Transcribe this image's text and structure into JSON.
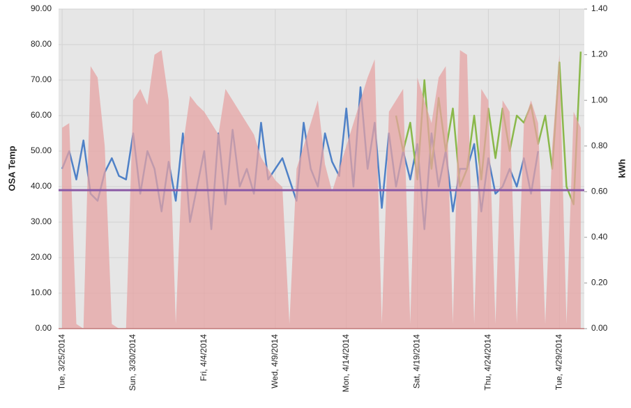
{
  "chart_data": {
    "type": "line",
    "y_label": "OSA Temp",
    "y2_label": "kWh",
    "categories": [
      "Tue, 3/25/2014",
      null,
      null,
      null,
      null,
      null,
      null,
      null,
      null,
      null,
      "Sun, 3/30/2014",
      null,
      null,
      null,
      null,
      null,
      null,
      null,
      null,
      null,
      "Fri, 4/4/2014",
      null,
      null,
      null,
      null,
      null,
      null,
      null,
      null,
      null,
      "Wed, 4/9/2014",
      null,
      null,
      null,
      null,
      null,
      null,
      null,
      null,
      null,
      "Mon, 4/14/2014",
      null,
      null,
      null,
      null,
      null,
      null,
      null,
      null,
      null,
      "Sat, 4/19/2014",
      null,
      null,
      null,
      null,
      null,
      null,
      null,
      null,
      null,
      "Thu, 4/24/2014",
      null,
      null,
      null,
      null,
      null,
      null,
      null,
      null,
      null,
      "Tue, 4/29/2014",
      null,
      null,
      null
    ],
    "series": [
      {
        "type": "line",
        "color": "#4f81c7",
        "values": [
          45,
          50,
          42,
          53,
          38,
          36,
          44,
          48,
          43,
          42,
          55,
          38,
          50,
          45,
          33,
          47,
          36,
          55,
          30,
          40,
          50,
          28,
          55,
          35,
          56,
          40,
          45,
          38,
          58,
          42,
          45,
          48,
          42,
          36,
          58,
          45,
          40,
          55,
          47,
          43,
          62,
          40,
          68,
          45,
          58,
          34,
          55,
          40,
          50,
          42,
          52,
          28,
          55,
          40,
          50,
          33,
          45,
          45,
          52,
          33,
          48,
          38,
          40,
          45,
          40,
          48,
          38,
          50,
          null,
          null,
          null,
          null,
          null,
          null
        ]
      },
      {
        "type": "line",
        "color": "#8ab84a",
        "values": [
          null,
          null,
          null,
          null,
          null,
          null,
          null,
          null,
          null,
          null,
          null,
          null,
          null,
          null,
          null,
          null,
          null,
          null,
          null,
          null,
          null,
          null,
          null,
          null,
          null,
          null,
          null,
          null,
          null,
          null,
          null,
          null,
          null,
          null,
          null,
          null,
          null,
          null,
          null,
          null,
          null,
          null,
          null,
          null,
          null,
          null,
          null,
          60,
          50,
          58,
          42,
          70,
          45,
          65,
          50,
          62,
          40,
          45,
          60,
          42,
          62,
          48,
          62,
          50,
          60,
          58,
          63,
          52,
          60,
          45,
          75,
          40,
          35,
          78
        ]
      },
      {
        "type": "area",
        "axis": "y2",
        "color": "#e6a3a3",
        "values": [
          0.88,
          0.9,
          0.02,
          0,
          1.15,
          1.1,
          0.8,
          0.02,
          0,
          0,
          1.0,
          1.05,
          0.98,
          1.2,
          1.22,
          1.0,
          0.02,
          0.8,
          1.02,
          0.98,
          0.95,
          0.9,
          0.85,
          1.05,
          1.0,
          0.95,
          0.9,
          0.85,
          0.75,
          0.7,
          0.65,
          0.62,
          0.02,
          0.7,
          0.8,
          0.9,
          1.0,
          0.72,
          0.6,
          0.7,
          0.8,
          0.9,
          1.0,
          1.1,
          1.18,
          0.02,
          0.95,
          1.0,
          1.05,
          0.02,
          1.1,
          1.0,
          0.9,
          1.1,
          1.15,
          0.02,
          1.22,
          1.2,
          0.02,
          1.05,
          1.0,
          0.02,
          1.0,
          0.95,
          0.02,
          0.9,
          1.0,
          0.9,
          0.02,
          0.8,
          1.2,
          0.02,
          0.95,
          0.88
        ]
      }
    ],
    "reference_line": {
      "value": 39,
      "color": "#8a5aa6"
    },
    "ylim": [
      0,
      90
    ],
    "yticks": [
      {
        "value": 0,
        "label": "0.00"
      },
      {
        "value": 10,
        "label": "10.00"
      },
      {
        "value": 20,
        "label": "20.00"
      },
      {
        "value": 30,
        "label": "30.00"
      },
      {
        "value": 40,
        "label": "40.00"
      },
      {
        "value": 50,
        "label": "50.00"
      },
      {
        "value": 60,
        "label": "60.00"
      },
      {
        "value": 70,
        "label": "70.00"
      },
      {
        "value": 80,
        "label": "80.00"
      },
      {
        "value": 90,
        "label": "90.00"
      }
    ],
    "y2lim": [
      0,
      1.4
    ],
    "y2ticks": [
      {
        "value": 0,
        "label": "0.00"
      },
      {
        "value": 0.2,
        "label": "0.20"
      },
      {
        "value": 0.4,
        "label": "0.40"
      },
      {
        "value": 0.6,
        "label": "0.60"
      },
      {
        "value": 0.8,
        "label": "0.80"
      },
      {
        "value": 1.0,
        "label": "1.00"
      },
      {
        "value": 1.2,
        "label": "1.20"
      },
      {
        "value": 1.4,
        "label": "1.40"
      }
    ],
    "grid": true
  }
}
